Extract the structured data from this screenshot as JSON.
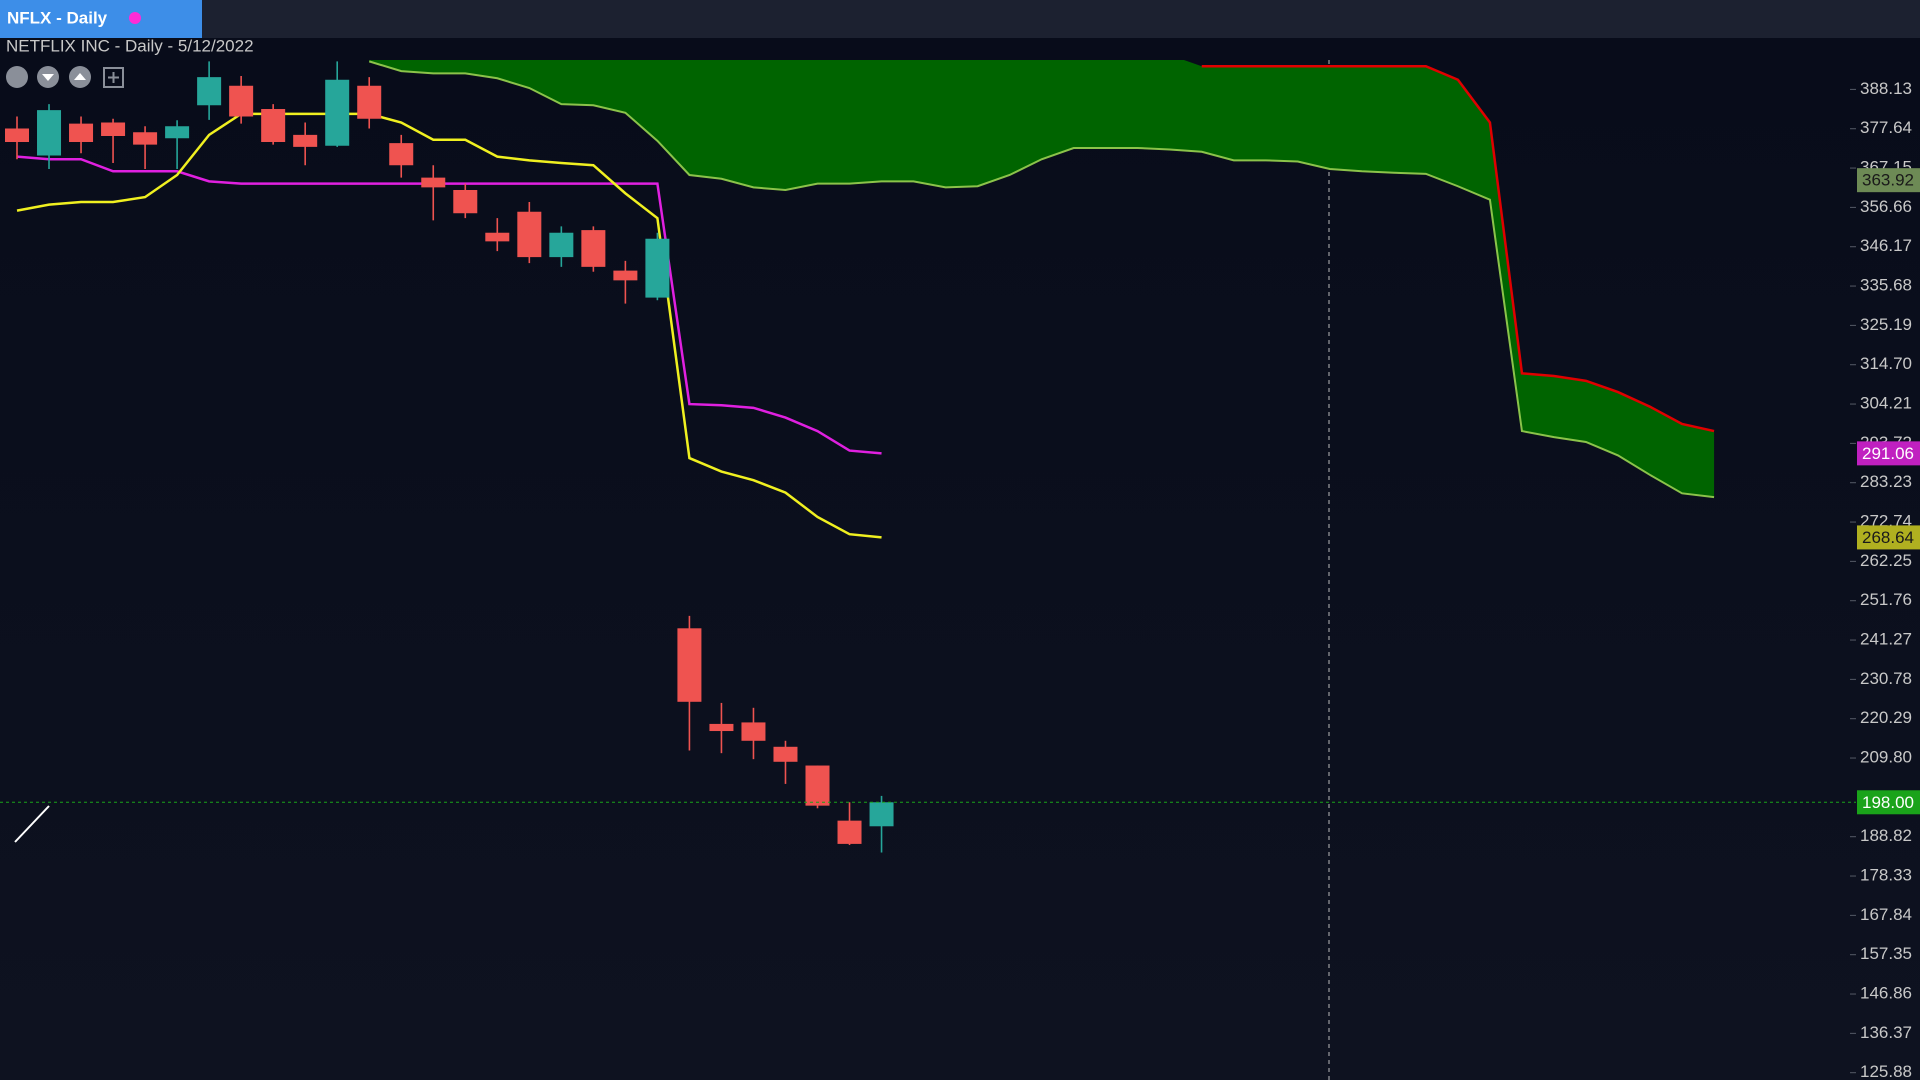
{
  "tab": "NFLX - Daily",
  "chart_data": {
    "type": "candlestick",
    "title": "NETFLIX INC - Daily - 5/12/2022",
    "ylim": [
      123.93,
      395.97
    ],
    "yticks": [
      388.13,
      377.64,
      367.15,
      356.66,
      346.17,
      335.68,
      325.19,
      {
        "value": 314.7,
        "label": "314.70"
      },
      304.21,
      293.72,
      283.23,
      272.74,
      262.25,
      251.76,
      241.27,
      230.78,
      220.29,
      {
        "value": 209.8,
        "label": "209.80"
      },
      188.82,
      178.33,
      167.84,
      157.35,
      146.86,
      136.37,
      125.88
    ],
    "up_color": "#26a69a",
    "down_color": "#ef5350",
    "open": [
      377.7,
      370.5,
      379.0,
      379.3,
      376.7,
      375.1,
      383.9,
      389.1,
      382.9,
      376.0,
      373.1,
      389.1,
      373.8,
      364.6,
      361.3,
      349.9,
      355.5,
      343.4,
      350.6,
      339.8,
      332.6,
      244.4,
      218.9,
      219.3,
      212.8,
      207.8,
      193.1,
      191.6
    ],
    "high": [
      380.9,
      384.2,
      380.9,
      380.3,
      378.3,
      379.9,
      395.6,
      391.7,
      384.2,
      379.3,
      395.6,
      391.4,
      376.0,
      367.9,
      363.0,
      353.8,
      358.1,
      351.6,
      351.6,
      342.4,
      349.9,
      247.7,
      224.5,
      223.2,
      214.4,
      207.8,
      198.0,
      199.7
    ],
    "low": [
      369.5,
      366.9,
      371.1,
      368.5,
      366.9,
      366.9,
      380.0,
      379.0,
      373.4,
      367.9,
      372.8,
      377.7,
      364.6,
      353.2,
      353.8,
      345.0,
      341.8,
      340.8,
      339.5,
      331.0,
      331.9,
      211.8,
      211.1,
      209.5,
      202.9,
      196.4,
      186.6,
      184.6
    ],
    "close": [
      374.1,
      382.6,
      374.1,
      375.7,
      373.4,
      378.3,
      391.4,
      380.9,
      374.1,
      372.8,
      390.7,
      380.3,
      367.9,
      362.0,
      355.1,
      347.6,
      343.4,
      349.9,
      340.8,
      337.2,
      348.3,
      224.8,
      217.0,
      214.4,
      208.8,
      197.1,
      186.9,
      198.0
    ],
    "lines": [
      {
        "color": "#e020e0",
        "values": [
          370.2,
          369.5,
          369.5,
          366.3,
          366.3,
          366.3,
          363.6,
          363.0,
          363.0,
          363.0,
          363.0,
          363.0,
          363.0,
          363.0,
          363.0,
          363.0,
          363.0,
          363.0,
          363.0,
          363.0,
          363.0,
          304.2,
          303.9,
          303.2,
          300.6,
          297.0,
          291.8,
          291.06
        ]
      },
      {
        "color": "#f0f020",
        "values": [
          355.8,
          357.4,
          358.1,
          358.1,
          359.4,
          365.3,
          376.0,
          381.6,
          381.6,
          381.6,
          381.6,
          381.6,
          379.3,
          374.7,
          374.7,
          370.2,
          369.2,
          368.5,
          367.9,
          360.4,
          353.8,
          289.8,
          286.2,
          283.9,
          280.6,
          274.1,
          269.5,
          268.64
        ]
      }
    ],
    "cloud": {
      "fill": "#006400",
      "span_a_color": "#8bc34a",
      "span_b_color": "#e00000",
      "span_a": [
        null,
        null,
        null,
        null,
        null,
        null,
        null,
        null,
        null,
        null,
        null,
        395.6,
        393.0,
        392.4,
        392.4,
        391.1,
        388.5,
        384.2,
        383.9,
        381.9,
        374.4,
        365.3,
        364.3,
        362.0,
        361.3,
        363.0,
        363.0,
        363.6,
        363.6,
        362.0,
        362.3,
        365.3,
        369.5,
        372.5,
        372.5,
        372.5,
        372.1,
        371.5,
        369.2,
        369.2,
        368.9,
        366.9,
        366.3,
        365.9,
        365.6,
        362.3,
        358.7,
        297.0,
        295.4,
        294.1,
        290.5,
        285.3,
        280.4,
        279.4
      ],
      "span_b": [
        null,
        null,
        null,
        null,
        null,
        null,
        null,
        null,
        null,
        null,
        null,
        null,
        null,
        null,
        null,
        null,
        null,
        null,
        null,
        null,
        null,
        null,
        null,
        null,
        null,
        null,
        null,
        null,
        null,
        null,
        null,
        null,
        null,
        null,
        null,
        null,
        null,
        394.3,
        394.3,
        394.3,
        394.3,
        394.3,
        394.3,
        394.3,
        394.3,
        390.7,
        379.3,
        312.4,
        311.7,
        310.4,
        307.4,
        303.5,
        298.9,
        297.0
      ]
    },
    "price_labels": [
      {
        "value": 363.92,
        "color": "#6d8a55",
        "text_color": "#1a1a1a"
      },
      {
        "value": 291.06,
        "color": "#c020c0",
        "text_color": "#ffffff"
      },
      {
        "value": 268.64,
        "color": "#b0b020",
        "text_color": "#1a1a1a"
      },
      {
        "value": 198,
        "label": "198.00",
        "color": "#1aa31a",
        "text_color": "#ffffff"
      }
    ]
  }
}
